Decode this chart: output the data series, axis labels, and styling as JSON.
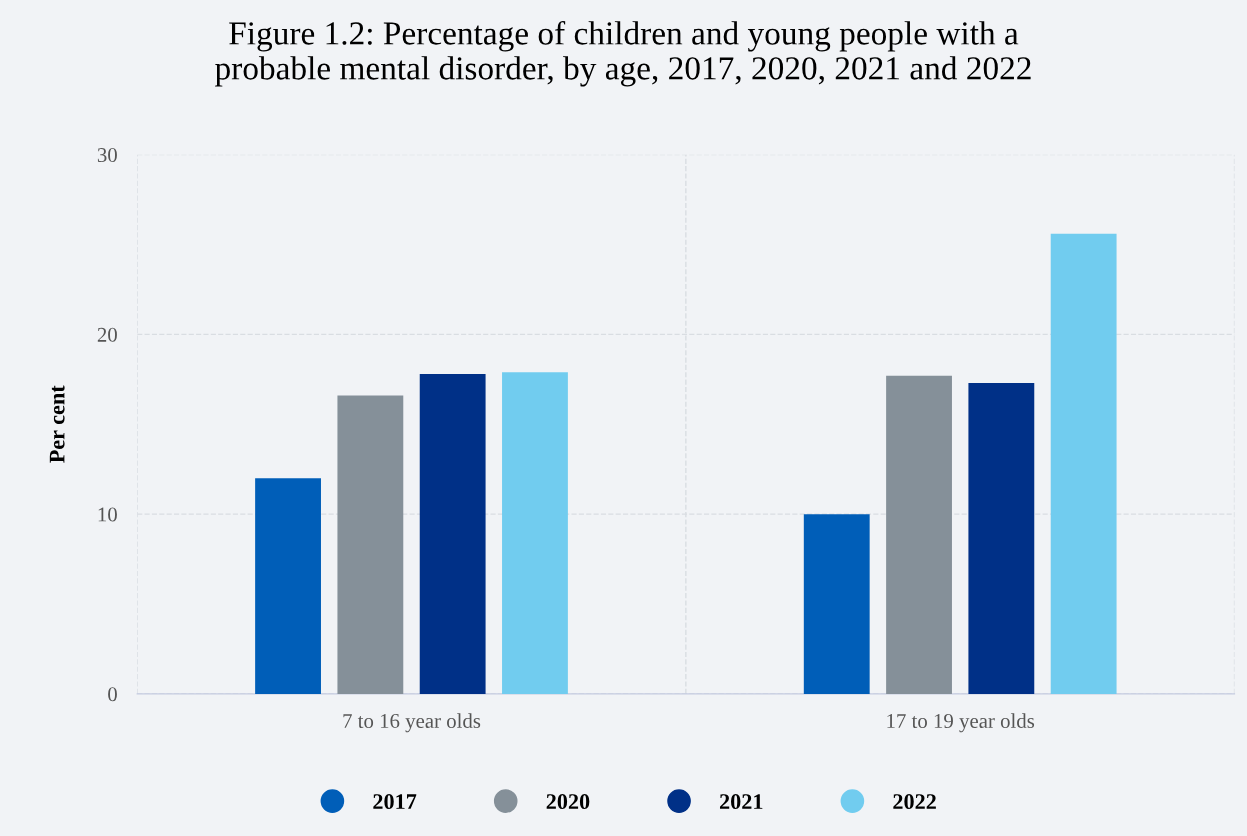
{
  "chart_data": {
    "type": "bar",
    "title": "Figure 1.2: Percentage of children and young people with a\nprobable mental disorder, by age, 2017, 2020, 2021 and 2022",
    "ylabel": "Per cent",
    "categories": [
      "7 to 16 year olds",
      "17 to 19 year olds"
    ],
    "series": [
      {
        "name": "2017",
        "color": "#005eb8",
        "values": [
          12,
          10
        ]
      },
      {
        "name": "2020",
        "color": "#859099",
        "values": [
          16.6,
          17.7
        ]
      },
      {
        "name": "2021",
        "color": "#003087",
        "values": [
          17.8,
          17.3
        ]
      },
      {
        "name": "2022",
        "color": "#71ccef",
        "values": [
          17.9,
          25.6
        ]
      }
    ],
    "ylim": [
      0,
      30
    ],
    "yticks": [
      0,
      10,
      20,
      30
    ],
    "grid": true,
    "legend": "bottom"
  }
}
